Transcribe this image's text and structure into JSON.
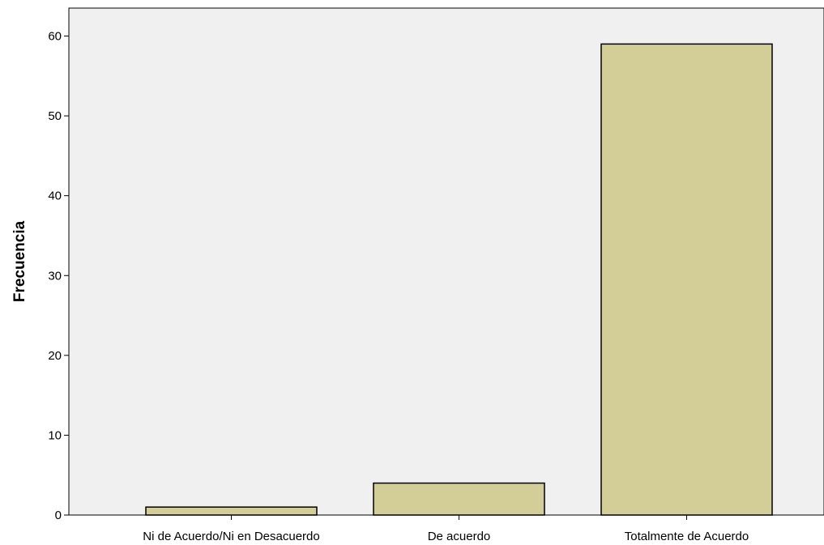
{
  "chart_data": {
    "type": "bar",
    "title": "",
    "xlabel": "",
    "ylabel": "Frecuencia",
    "categories": [
      "Ni de Acuerdo/Ni en Desacuerdo",
      "De acuerdo",
      "Totalmente de Acuerdo"
    ],
    "values": [
      1,
      4,
      59
    ],
    "ylim": [
      0,
      63.5
    ],
    "yticks": [
      0,
      10,
      20,
      30,
      40,
      50,
      60
    ],
    "grid": false,
    "legend": "none",
    "colors": {
      "plot_background": "#f0f0f0",
      "bar_fill": "#d3ce97",
      "bar_stroke": "#000000",
      "axis": "#000000"
    }
  }
}
